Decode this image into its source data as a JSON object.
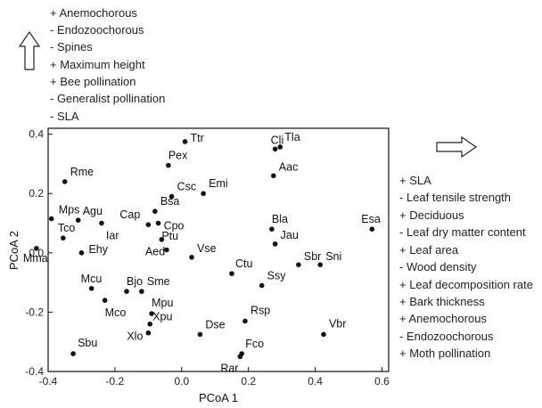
{
  "chart_data": {
    "type": "scatter",
    "title": "",
    "xlabel": "PCoA 1",
    "ylabel": "PCoA 2",
    "xlim": [
      -0.4,
      0.62
    ],
    "ylim": [
      -0.4,
      0.42
    ],
    "xticks": [
      -0.4,
      -0.2,
      0.0,
      0.2,
      0.4,
      0.6
    ],
    "yticks": [
      -0.4,
      -0.2,
      0.0,
      0.2,
      0.4
    ],
    "xtick_labels": [
      "-0.4",
      "-0.2",
      "0.0",
      "0.2",
      "0.4",
      "0.6"
    ],
    "ytick_labels": [
      "-0.4",
      "-0.2",
      "0.0",
      "0.2",
      "0.4"
    ],
    "grid": false,
    "points": [
      {
        "label": "Ttr",
        "x": 0.01,
        "y": 0.375,
        "lx": 6,
        "ly": 0
      },
      {
        "label": "Pex",
        "x": -0.04,
        "y": 0.295,
        "lx": 0,
        "ly": -7
      },
      {
        "label": "Cli",
        "x": 0.28,
        "y": 0.35,
        "lx": -5,
        "ly": -6
      },
      {
        "label": "Tla",
        "x": 0.295,
        "y": 0.357,
        "lx": 5,
        "ly": -7
      },
      {
        "label": "Aac",
        "x": 0.275,
        "y": 0.26,
        "lx": 6,
        "ly": -6
      },
      {
        "label": "Rme",
        "x": -0.35,
        "y": 0.24,
        "lx": 6,
        "ly": -7
      },
      {
        "label": "Csc",
        "x": -0.03,
        "y": 0.19,
        "lx": 6,
        "ly": -7
      },
      {
        "label": "Emi",
        "x": 0.065,
        "y": 0.2,
        "lx": 6,
        "ly": -7
      },
      {
        "label": "Bsa",
        "x": -0.08,
        "y": 0.14,
        "lx": 6,
        "ly": -7
      },
      {
        "label": "Mps",
        "x": -0.39,
        "y": 0.115,
        "lx": 8,
        "ly": -6
      },
      {
        "label": "Agu",
        "x": -0.31,
        "y": 0.11,
        "lx": 5,
        "ly": -6
      },
      {
        "label": "Cap",
        "x": -0.1,
        "y": 0.095,
        "lx": -32,
        "ly": -7
      },
      {
        "label": "Cpo",
        "x": -0.07,
        "y": 0.1,
        "lx": 6,
        "ly": 7
      },
      {
        "label": "Tco",
        "x": -0.355,
        "y": 0.05,
        "lx": -6,
        "ly": -7
      },
      {
        "label": "Iar",
        "x": -0.24,
        "y": 0.1,
        "lx": 5,
        "ly": 18
      },
      {
        "label": "Bla",
        "x": 0.27,
        "y": 0.08,
        "lx": 0,
        "ly": -7
      },
      {
        "label": "Esa",
        "x": 0.57,
        "y": 0.08,
        "lx": -12,
        "ly": -7
      },
      {
        "label": "Jau",
        "x": 0.28,
        "y": 0.03,
        "lx": 6,
        "ly": -6
      },
      {
        "label": "Ptu",
        "x": -0.06,
        "y": 0.045,
        "lx": 0,
        "ly": 0
      },
      {
        "label": "Aed",
        "x": -0.045,
        "y": 0.01,
        "lx": -24,
        "ly": 6
      },
      {
        "label": "Vse",
        "x": 0.03,
        "y": -0.015,
        "lx": 6,
        "ly": -6
      },
      {
        "label": "Mma",
        "x": -0.435,
        "y": 0.015,
        "lx": -15,
        "ly": 15
      },
      {
        "label": "Ehy",
        "x": -0.3,
        "y": 0.0,
        "lx": 8,
        "ly": 0
      },
      {
        "label": "Sbr",
        "x": 0.35,
        "y": -0.04,
        "lx": 6,
        "ly": -5
      },
      {
        "label": "Sni",
        "x": 0.415,
        "y": -0.04,
        "lx": 6,
        "ly": -5
      },
      {
        "label": "Ctu",
        "x": 0.15,
        "y": -0.07,
        "lx": 4,
        "ly": -7
      },
      {
        "label": "Ssy",
        "x": 0.24,
        "y": -0.11,
        "lx": 6,
        "ly": -7
      },
      {
        "label": "Mcu",
        "x": -0.27,
        "y": -0.12,
        "lx": -12,
        "ly": -7
      },
      {
        "label": "Bjo",
        "x": -0.165,
        "y": -0.13,
        "lx": 0,
        "ly": -7
      },
      {
        "label": "Sme",
        "x": -0.12,
        "y": -0.13,
        "lx": 6,
        "ly": -7
      },
      {
        "label": "Mpu",
        "x": -0.09,
        "y": -0.205,
        "lx": 0,
        "ly": -8
      },
      {
        "label": "Mco",
        "x": -0.23,
        "y": -0.16,
        "lx": 0,
        "ly": 18
      },
      {
        "label": "Rsp",
        "x": 0.19,
        "y": -0.23,
        "lx": 6,
        "ly": -8
      },
      {
        "label": "Xpu",
        "x": -0.095,
        "y": -0.24,
        "lx": 3,
        "ly": -4
      },
      {
        "label": "Xlo",
        "x": -0.1,
        "y": -0.27,
        "lx": -24,
        "ly": 8
      },
      {
        "label": "Dse",
        "x": 0.055,
        "y": -0.275,
        "lx": 6,
        "ly": -7
      },
      {
        "label": "Vbr",
        "x": 0.425,
        "y": -0.275,
        "lx": 6,
        "ly": -8
      },
      {
        "label": "Sbu",
        "x": -0.325,
        "y": -0.34,
        "lx": 5,
        "ly": -8
      },
      {
        "label": "Fco",
        "x": 0.18,
        "y": -0.34,
        "lx": 4,
        "ly": -7
      },
      {
        "label": "Rar",
        "x": 0.175,
        "y": -0.35,
        "lx": -22,
        "ly": 17
      }
    ]
  },
  "axis2_traits": [
    "+ Anemochorous",
    "-  Endozoochorous",
    "-  Spines",
    "+ Maximum height",
    "+ Bee pollination",
    "-  Generalist pollination",
    "-  SLA"
  ],
  "axis1_traits": [
    "+ SLA",
    "-  Leaf tensile strength",
    "+ Deciduous",
    "-  Leaf dry matter content",
    "+ Leaf area",
    "-  Wood density",
    "+ Leaf decomposition rate",
    "+ Bark thickness",
    "+ Anemochorous",
    "-  Endozoochorous",
    "+ Moth pollination"
  ]
}
